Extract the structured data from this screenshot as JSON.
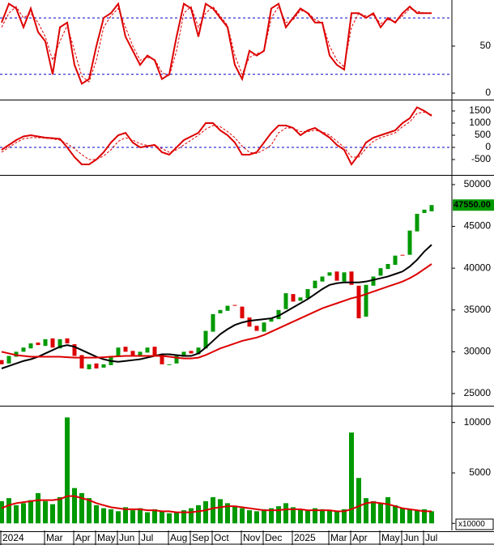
{
  "chart_data": [
    {
      "type": "line",
      "ylim": [
        -6,
        99
      ],
      "yticks": [
        0,
        50
      ],
      "reference_lines": [
        {
          "value": 80,
          "color": "#0000cc"
        },
        {
          "value": 20,
          "color": "#0000cc"
        }
      ],
      "series": [
        {
          "color": "#dd0000",
          "values": [
            75,
            95,
            90,
            70,
            90,
            65,
            55,
            20,
            70,
            75,
            30,
            10,
            15,
            50,
            80,
            85,
            95,
            60,
            45,
            30,
            40,
            35,
            15,
            20,
            60,
            95,
            90,
            60,
            95,
            90,
            80,
            70,
            30,
            15,
            45,
            40,
            45,
            90,
            95,
            70,
            80,
            90,
            85,
            75,
            75,
            40,
            30,
            25,
            85,
            85,
            80,
            85,
            70,
            80,
            75,
            85,
            92,
            85,
            85,
            85
          ]
        },
        {
          "color": "#dd0000",
          "dashed": true,
          "values": [
            70,
            85,
            92,
            80,
            85,
            75,
            60,
            35,
            55,
            72,
            45,
            18,
            12,
            35,
            70,
            82,
            90,
            70,
            50,
            35,
            38,
            36,
            22,
            18,
            45,
            85,
            92,
            70,
            85,
            92,
            82,
            72,
            40,
            20,
            38,
            42,
            44,
            80,
            92,
            75,
            78,
            88,
            86,
            78,
            75,
            50,
            35,
            28,
            70,
            85,
            82,
            83,
            74,
            78,
            76,
            82,
            90,
            87,
            85,
            85
          ]
        }
      ]
    },
    {
      "type": "line",
      "ylim": [
        -1100,
        1900
      ],
      "yticks": [
        1500,
        1000,
        500,
        0,
        -500
      ],
      "reference_lines": [
        {
          "value": 0,
          "color": "#0000cc"
        }
      ],
      "series": [
        {
          "color": "#dd0000",
          "values": [
            -100,
            100,
            300,
            450,
            500,
            450,
            400,
            380,
            350,
            0,
            -400,
            -700,
            -700,
            -500,
            -200,
            200,
            500,
            600,
            200,
            0,
            50,
            100,
            -200,
            -300,
            0,
            300,
            450,
            600,
            1000,
            1000,
            700,
            500,
            200,
            -300,
            -300,
            -200,
            200,
            600,
            900,
            900,
            800,
            500,
            700,
            800,
            600,
            400,
            100,
            -100,
            -700,
            -300,
            200,
            400,
            500,
            600,
            700,
            1000,
            1200,
            1650,
            1500,
            1300
          ]
        },
        {
          "color": "#dd0000",
          "dashed": true,
          "values": [
            -200,
            0,
            200,
            350,
            400,
            400,
            380,
            350,
            300,
            150,
            -50,
            -300,
            -500,
            -500,
            -350,
            -100,
            250,
            400,
            300,
            150,
            80,
            80,
            -50,
            -200,
            -100,
            100,
            300,
            500,
            750,
            900,
            850,
            650,
            400,
            50,
            -200,
            -250,
            -100,
            100,
            600,
            800,
            800,
            650,
            650,
            700,
            650,
            500,
            250,
            0,
            -400,
            -400,
            -50,
            250,
            400,
            500,
            600,
            850,
            1050,
            1400,
            1450,
            1350
          ]
        }
      ]
    },
    {
      "type": "candlestick",
      "ylim": [
        23640,
        50770
      ],
      "yticks": [
        50000,
        45000,
        40000,
        35000,
        30000,
        25000
      ],
      "up_color": "#009900",
      "down_color": "#dd0000",
      "open": [
        29000,
        28600,
        29400,
        30000,
        30400,
        31100,
        30700,
        31600,
        30400,
        31600,
        30900,
        29600,
        27900,
        28600,
        28100,
        28400,
        29400,
        30600,
        30100,
        29400,
        29900,
        30600,
        29600,
        28400,
        28600,
        29400,
        30100,
        29700,
        30400,
        32400,
        34600,
        34900,
        35600,
        35400,
        34100,
        33100,
        32400,
        33600,
        33900,
        35100,
        36900,
        36100,
        36400,
        37600,
        38400,
        39100,
        39600,
        38400,
        39600,
        37900,
        34200,
        37900,
        39100,
        39900,
        40400,
        41600,
        41600,
        44400,
        46600,
        46800
      ],
      "close": [
        28500,
        29500,
        30000,
        30500,
        31000,
        30800,
        31500,
        30500,
        31500,
        31000,
        29500,
        28000,
        28500,
        28000,
        28500,
        29500,
        30500,
        30000,
        29500,
        30000,
        30500,
        29500,
        28500,
        28500,
        29500,
        30000,
        29800,
        30500,
        32500,
        34500,
        35000,
        35500,
        35500,
        34000,
        33000,
        32500,
        33500,
        34000,
        35000,
        37000,
        36000,
        36500,
        37500,
        38500,
        39000,
        39500,
        38500,
        39500,
        38000,
        34000,
        38000,
        39000,
        40000,
        40500,
        41500,
        41500,
        44500,
        46500,
        47000,
        47550
      ],
      "last_label": {
        "value": 47550,
        "label": "47550.00",
        "color": "#009900"
      },
      "series": [
        {
          "color": "#000000",
          "values": [
            28000,
            28300,
            28600,
            28900,
            29100,
            29400,
            29800,
            30200,
            30600,
            30800,
            30600,
            30200,
            29800,
            29400,
            29100,
            28900,
            28800,
            28900,
            29000,
            29100,
            29300,
            29500,
            29700,
            29700,
            29600,
            29500,
            29500,
            29800,
            30500,
            31300,
            32100,
            32700,
            33200,
            33500,
            33700,
            33800,
            33900,
            34000,
            34300,
            34800,
            35300,
            35800,
            36300,
            36900,
            37500,
            38000,
            38200,
            38300,
            38300,
            38300,
            38400,
            38600,
            38800,
            39000,
            39300,
            39600,
            40200,
            41000,
            42000,
            42800
          ]
        },
        {
          "color": "#dd0000",
          "values": [
            30000,
            29800,
            29600,
            29500,
            29400,
            29400,
            29400,
            29400,
            29400,
            29350,
            29300,
            29300,
            29300,
            29300,
            29350,
            29400,
            29450,
            29500,
            29500,
            29500,
            29500,
            29500,
            29500,
            29400,
            29300,
            29200,
            29200,
            29300,
            29600,
            30000,
            30400,
            30700,
            31000,
            31300,
            31500,
            31700,
            32000,
            32400,
            32800,
            33200,
            33600,
            34000,
            34400,
            34800,
            35200,
            35500,
            35800,
            36100,
            36400,
            36600,
            36900,
            37200,
            37500,
            37800,
            38100,
            38400,
            38800,
            39300,
            39900,
            40500
          ]
        }
      ]
    },
    {
      "type": "bar",
      "ylim": [
        -700,
        11500
      ],
      "yticks": [
        10000,
        5000,
        0
      ],
      "unit_label": "x10000",
      "color": "#009900",
      "categories": [
        "2024",
        null,
        null,
        null,
        null,
        null,
        "Mar",
        null,
        null,
        null,
        "Apr",
        null,
        null,
        "May",
        null,
        null,
        "Jun",
        null,
        null,
        "Jul",
        null,
        null,
        null,
        "Aug",
        null,
        null,
        "Sep",
        null,
        null,
        "Oct",
        null,
        null,
        null,
        "Nov",
        null,
        null,
        "Dec",
        null,
        null,
        null,
        "2025",
        null,
        null,
        null,
        null,
        "Mar",
        null,
        null,
        "Apr",
        null,
        null,
        null,
        "May",
        null,
        null,
        "Jun",
        null,
        null,
        "Jul",
        null
      ],
      "values": [
        2200,
        2500,
        1800,
        2000,
        2300,
        3000,
        2200,
        1900,
        2600,
        10500,
        3500,
        3000,
        2500,
        1800,
        1500,
        1400,
        1200,
        1600,
        1300,
        1500,
        1100,
        1400,
        1200,
        1000,
        1100,
        1300,
        1500,
        1800,
        2200,
        2600,
        2400,
        2000,
        1700,
        1500,
        1300,
        1200,
        1400,
        1500,
        1700,
        2000,
        1600,
        1400,
        1300,
        1500,
        1400,
        1300,
        1200,
        1400,
        9000,
        4500,
        2500,
        2200,
        2000,
        2600,
        1800,
        1500,
        1400,
        1300,
        1400,
        1200
      ],
      "series": [
        {
          "color": "#dd0000",
          "values": [
            1500,
            1800,
            2000,
            2100,
            2200,
            2300,
            2300,
            2300,
            2400,
            2700,
            2700,
            2500,
            2300,
            2000,
            1800,
            1600,
            1500,
            1400,
            1400,
            1400,
            1300,
            1300,
            1200,
            1200,
            1100,
            1100,
            1100,
            1200,
            1300,
            1500,
            1600,
            1700,
            1700,
            1600,
            1500,
            1400,
            1300,
            1300,
            1300,
            1400,
            1400,
            1400,
            1300,
            1300,
            1300,
            1300,
            1200,
            1200,
            1400,
            1700,
            2000,
            2100,
            2000,
            1900,
            1700,
            1500,
            1400,
            1300,
            1200,
            1200
          ]
        }
      ]
    }
  ]
}
